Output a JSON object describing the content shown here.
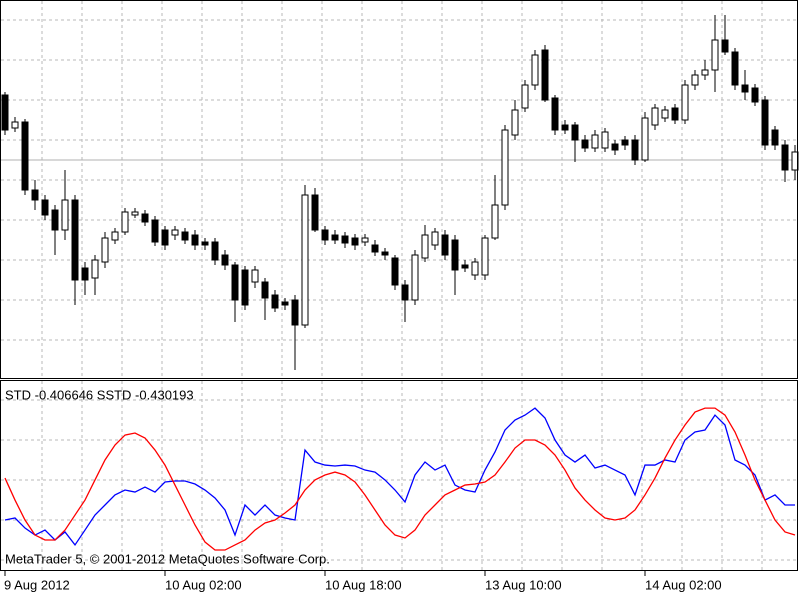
{
  "chart_data": [
    {
      "type": "candlestick",
      "open": [
        305,
        272,
        278,
        210,
        200,
        190,
        170,
        200,
        132,
        122,
        138,
        160,
        168,
        185,
        186,
        180,
        170,
        165,
        168,
        165,
        158,
        158,
        145,
        135,
        130,
        118,
        118,
        105,
        98,
        100,
        75,
        205,
        170,
        165,
        164,
        162,
        158,
        155,
        148,
        142,
        115,
        100,
        142,
        155,
        165,
        160,
        135,
        125,
        125,
        162,
        195,
        265,
        292,
        315,
        350,
        302,
        275,
        275,
        260,
        252,
        252,
        256,
        260,
        260,
        240,
        275,
        282,
        292,
        280,
        315,
        325,
        330,
        360,
        348,
        315,
        312,
        300,
        270,
        255,
        230
      ],
      "high": [
        308,
        283,
        281,
        220,
        205,
        195,
        230,
        205,
        138,
        145,
        168,
        172,
        192,
        192,
        190,
        184,
        174,
        174,
        172,
        170,
        162,
        162,
        150,
        138,
        134,
        134,
        122,
        110,
        102,
        105,
        215,
        212,
        174,
        170,
        168,
        166,
        166,
        160,
        152,
        145,
        120,
        150,
        175,
        172,
        170,
        165,
        140,
        142,
        165,
        225,
        275,
        300,
        320,
        350,
        355,
        305,
        280,
        278,
        265,
        270,
        272,
        260,
        264,
        265,
        288,
        296,
        294,
        296,
        320,
        330,
        340,
        385,
        385,
        352,
        330,
        316,
        304,
        274,
        260,
        255
      ],
      "low": [
        265,
        268,
        205,
        190,
        180,
        145,
        160,
        95,
        105,
        105,
        132,
        156,
        165,
        182,
        174,
        154,
        150,
        160,
        156,
        150,
        150,
        135,
        130,
        78,
        90,
        112,
        80,
        88,
        90,
        30,
        72,
        168,
        155,
        156,
        152,
        150,
        154,
        144,
        140,
        110,
        78,
        95,
        138,
        150,
        140,
        105,
        128,
        120,
        120,
        160,
        190,
        260,
        288,
        310,
        298,
        265,
        266,
        238,
        248,
        248,
        248,
        245,
        250,
        235,
        238,
        270,
        278,
        276,
        276,
        310,
        320,
        308,
        345,
        310,
        300,
        294,
        250,
        250,
        218,
        220
      ],
      "close": [
        270,
        278,
        210,
        200,
        185,
        170,
        200,
        120,
        120,
        140,
        162,
        168,
        188,
        188,
        178,
        158,
        155,
        170,
        160,
        155,
        155,
        140,
        135,
        100,
        95,
        130,
        102,
        92,
        95,
        75,
        205,
        170,
        160,
        160,
        157,
        155,
        162,
        148,
        145,
        115,
        100,
        145,
        165,
        168,
        145,
        130,
        132,
        138,
        162,
        195,
        270,
        290,
        315,
        345,
        300,
        270,
        270,
        260,
        252,
        265,
        268,
        250,
        255,
        240,
        282,
        292,
        290,
        280,
        315,
        325,
        330,
        360,
        348,
        315,
        308,
        298,
        255,
        255,
        230,
        248
      ],
      "up_color": "#ffffff",
      "down_color": "#000000",
      "bid_line": 240,
      "ylim": [
        22,
        400
      ],
      "grid": true
    },
    {
      "type": "line",
      "title": "STD -0.406646 SSTD -0.430193",
      "footer": "MetaTrader 5, © 2001-2012 MetaQuotes Software Corp.",
      "categories": [
        "9 Aug 2012",
        null,
        null,
        null,
        null,
        null,
        null,
        null,
        null,
        null,
        null,
        null,
        null,
        null,
        null,
        null,
        "10 Aug 02:00",
        null,
        null,
        null,
        null,
        null,
        null,
        null,
        null,
        null,
        null,
        null,
        null,
        null,
        null,
        null,
        "10 Aug 18:00",
        null,
        null,
        null,
        null,
        null,
        null,
        null,
        null,
        null,
        null,
        null,
        null,
        null,
        null,
        null,
        "13 Aug 10:00",
        null,
        null,
        null,
        null,
        null,
        null,
        null,
        null,
        null,
        null,
        null,
        null,
        null,
        null,
        null,
        "14 Aug 02:00",
        null,
        null,
        null,
        null,
        null,
        null,
        null,
        null,
        null,
        null,
        null,
        null,
        null,
        null,
        null
      ],
      "series": [
        {
          "color": "#0000ff",
          "values": [
            -0.4184,
            -0.4168,
            -0.4247,
            -0.4302,
            -0.4263,
            -0.4341,
            -0.4278,
            -0.438,
            -0.4263,
            -0.4145,
            -0.4066,
            -0.3987,
            -0.3948,
            -0.3964,
            -0.3925,
            -0.3964,
            -0.3885,
            -0.3877,
            -0.3877,
            -0.3901,
            -0.3948,
            -0.4011,
            -0.4105,
            -0.4302,
            -0.4066,
            -0.4145,
            -0.4066,
            -0.4145,
            -0.4168,
            -0.4184,
            -0.3634,
            -0.3728,
            -0.3752,
            -0.3759,
            -0.3752,
            -0.3759,
            -0.3791,
            -0.3807,
            -0.3869,
            -0.3948,
            -0.4042,
            -0.383,
            -0.3728,
            -0.3791,
            -0.3752,
            -0.3909,
            -0.3948,
            -0.3964,
            -0.3791,
            -0.3649,
            -0.3476,
            -0.3398,
            -0.3359,
            -0.3304,
            -0.3382,
            -0.3555,
            -0.3673,
            -0.3728,
            -0.3673,
            -0.3775,
            -0.3752,
            -0.3791,
            -0.383,
            -0.3987,
            -0.3752,
            -0.3752,
            -0.3712,
            -0.3728,
            -0.3555,
            -0.3492,
            -0.3476,
            -0.3359,
            -0.3437,
            -0.3712,
            -0.3752,
            -0.383,
            -0.4027,
            -0.3987,
            -0.4066,
            -0.4066
          ]
        },
        {
          "color": "#ff0000",
          "values": [
            -0.3854,
            -0.4027,
            -0.4184,
            -0.4302,
            -0.4341,
            -0.4341,
            -0.4263,
            -0.4145,
            -0.4027,
            -0.3869,
            -0.3712,
            -0.3594,
            -0.3516,
            -0.35,
            -0.3539,
            -0.3634,
            -0.3752,
            -0.3909,
            -0.4066,
            -0.4223,
            -0.4357,
            -0.442,
            -0.442,
            -0.438,
            -0.4341,
            -0.4263,
            -0.4207,
            -0.4184,
            -0.4129,
            -0.4066,
            -0.3948,
            -0.3869,
            -0.383,
            -0.3807,
            -0.383,
            -0.3885,
            -0.3987,
            -0.4105,
            -0.4223,
            -0.4302,
            -0.4325,
            -0.4263,
            -0.4145,
            -0.4066,
            -0.3987,
            -0.3948,
            -0.3909,
            -0.3901,
            -0.3885,
            -0.383,
            -0.3728,
            -0.3618,
            -0.3555,
            -0.3555,
            -0.3594,
            -0.3673,
            -0.3791,
            -0.3932,
            -0.4027,
            -0.4105,
            -0.4168,
            -0.4184,
            -0.4168,
            -0.4105,
            -0.3987,
            -0.3854,
            -0.3697,
            -0.3555,
            -0.3437,
            -0.3335,
            -0.3304,
            -0.3304,
            -0.3359,
            -0.3492,
            -0.3673,
            -0.3869,
            -0.4027,
            -0.4184,
            -0.4278,
            -0.4302
          ]
        }
      ],
      "ylim": [
        -0.4577,
        -0.3083
      ],
      "grid": true
    }
  ]
}
